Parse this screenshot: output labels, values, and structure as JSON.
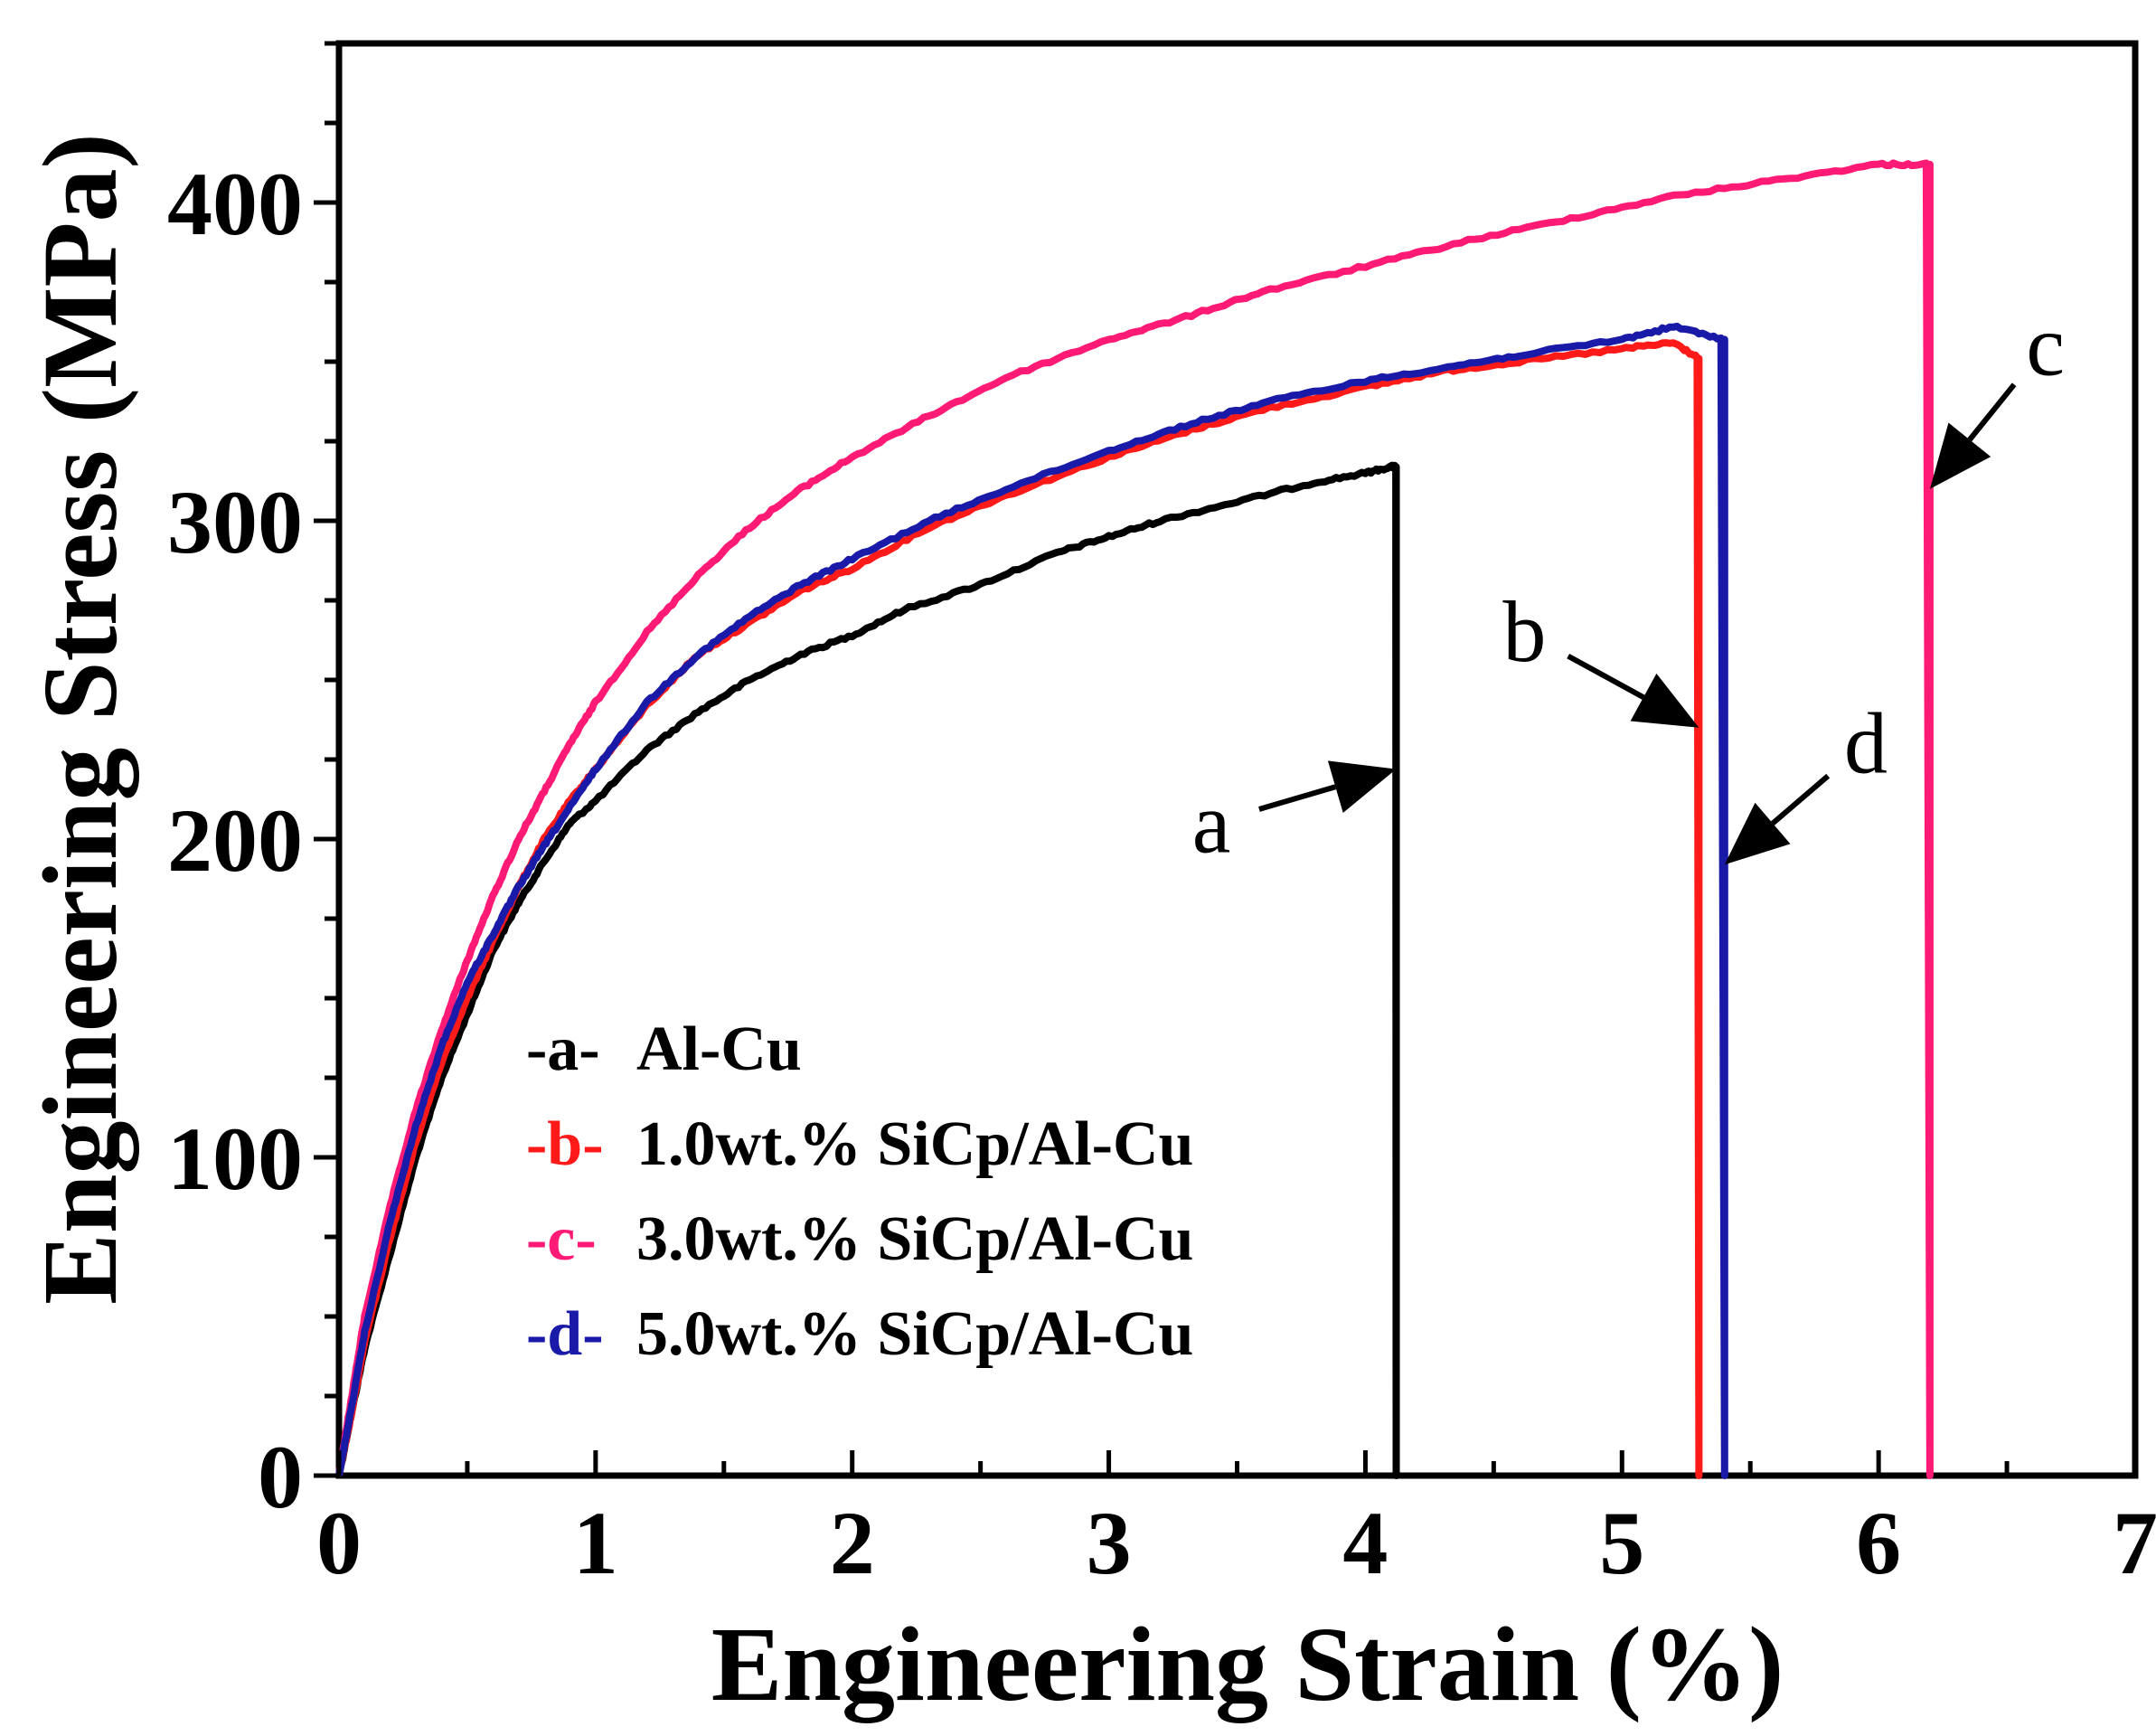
{
  "chart_data": {
    "type": "line",
    "xlabel": "Engineering Strain (%)",
    "ylabel": "Engineering  Stress (MPa)",
    "xlim": [
      0,
      7
    ],
    "ylim": [
      0,
      450
    ],
    "x_ticks": [
      0,
      1,
      2,
      3,
      4,
      5,
      6,
      7
    ],
    "x_tick_labels": [
      "0",
      "1",
      "2",
      "3",
      "4",
      "5",
      "6",
      "7"
    ],
    "y_ticks": [
      0,
      100,
      200,
      300,
      400
    ],
    "y_tick_labels": [
      "0",
      "100",
      "200",
      "300",
      "400"
    ],
    "legend_position": "lower-left",
    "series": [
      {
        "id": "a",
        "marker": "-a-",
        "name": "Al-Cu",
        "color": "#000000",
        "points": [
          [
            0,
            0
          ],
          [
            0.05,
            20
          ],
          [
            0.1,
            40
          ],
          [
            0.2,
            70
          ],
          [
            0.3,
            100
          ],
          [
            0.4,
            125
          ],
          [
            0.5,
            145
          ],
          [
            0.6,
            165
          ],
          [
            0.7,
            180
          ],
          [
            0.8,
            193
          ],
          [
            0.9,
            205
          ],
          [
            1.0,
            212
          ],
          [
            1.2,
            228
          ],
          [
            1.4,
            240
          ],
          [
            1.6,
            250
          ],
          [
            1.8,
            258
          ],
          [
            2.0,
            264
          ],
          [
            2.2,
            272
          ],
          [
            2.5,
            280
          ],
          [
            2.8,
            290
          ],
          [
            3.0,
            295
          ],
          [
            3.2,
            300
          ],
          [
            3.5,
            306
          ],
          [
            3.8,
            312
          ],
          [
            4.0,
            315
          ],
          [
            4.1,
            317
          ],
          [
            4.12,
            317
          ],
          [
            4.12,
            0
          ]
        ],
        "fracture_strain": 4.12
      },
      {
        "id": "b",
        "marker": "-b-",
        "name": "1.0wt.% SiCp/Al-Cu",
        "color": "#ff1a1a",
        "points": [
          [
            0,
            0
          ],
          [
            0.05,
            20
          ],
          [
            0.1,
            42
          ],
          [
            0.2,
            75
          ],
          [
            0.3,
            105
          ],
          [
            0.4,
            130
          ],
          [
            0.5,
            150
          ],
          [
            0.6,
            168
          ],
          [
            0.7,
            185
          ],
          [
            0.8,
            200
          ],
          [
            0.9,
            212
          ],
          [
            1.0,
            222
          ],
          [
            1.2,
            242
          ],
          [
            1.4,
            258
          ],
          [
            1.6,
            268
          ],
          [
            1.8,
            278
          ],
          [
            2.0,
            285
          ],
          [
            2.3,
            298
          ],
          [
            2.6,
            308
          ],
          [
            3.0,
            320
          ],
          [
            3.3,
            328
          ],
          [
            3.6,
            335
          ],
          [
            4.0,
            342
          ],
          [
            4.3,
            347
          ],
          [
            4.6,
            350
          ],
          [
            5.0,
            354
          ],
          [
            5.2,
            356
          ],
          [
            5.3,
            351
          ],
          [
            5.3,
            0
          ]
        ],
        "fracture_strain": 5.3
      },
      {
        "id": "c",
        "marker": "-c-",
        "name": "3.0wt.% SiCp/Al-Cu",
        "color": "#ff1a75",
        "points": [
          [
            0,
            0
          ],
          [
            0.05,
            25
          ],
          [
            0.1,
            50
          ],
          [
            0.2,
            85
          ],
          [
            0.3,
            115
          ],
          [
            0.4,
            140
          ],
          [
            0.5,
            162
          ],
          [
            0.6,
            182
          ],
          [
            0.7,
            200
          ],
          [
            0.8,
            215
          ],
          [
            0.9,
            230
          ],
          [
            1.0,
            243
          ],
          [
            1.2,
            265
          ],
          [
            1.4,
            283
          ],
          [
            1.6,
            298
          ],
          [
            1.8,
            310
          ],
          [
            2.0,
            320
          ],
          [
            2.3,
            333
          ],
          [
            2.6,
            345
          ],
          [
            3.0,
            357
          ],
          [
            3.3,
            364
          ],
          [
            3.6,
            372
          ],
          [
            4.0,
            380
          ],
          [
            4.4,
            388
          ],
          [
            4.8,
            395
          ],
          [
            5.2,
            402
          ],
          [
            5.6,
            407
          ],
          [
            6.0,
            412
          ],
          [
            6.2,
            412
          ],
          [
            6.2,
            0
          ]
        ],
        "fracture_strain": 6.2
      },
      {
        "id": "d",
        "marker": "-d-",
        "name": "5.0wt.% SiCp/Al-Cu",
        "color": "#1a1aa8",
        "points": [
          [
            0,
            0
          ],
          [
            0.05,
            22
          ],
          [
            0.1,
            45
          ],
          [
            0.2,
            80
          ],
          [
            0.3,
            110
          ],
          [
            0.4,
            135
          ],
          [
            0.5,
            155
          ],
          [
            0.6,
            170
          ],
          [
            0.7,
            185
          ],
          [
            0.8,
            198
          ],
          [
            0.9,
            210
          ],
          [
            1.0,
            222
          ],
          [
            1.2,
            243
          ],
          [
            1.4,
            258
          ],
          [
            1.6,
            270
          ],
          [
            1.8,
            280
          ],
          [
            2.0,
            288
          ],
          [
            2.3,
            300
          ],
          [
            2.6,
            310
          ],
          [
            3.0,
            322
          ],
          [
            3.3,
            330
          ],
          [
            3.6,
            337
          ],
          [
            4.0,
            344
          ],
          [
            4.3,
            348
          ],
          [
            4.6,
            352
          ],
          [
            5.0,
            357
          ],
          [
            5.2,
            361
          ],
          [
            5.4,
            357
          ],
          [
            5.4,
            0
          ]
        ],
        "fracture_strain": 5.4
      }
    ],
    "annotations": [
      {
        "label": "a",
        "arrow_target": [
          4.12,
          222
        ],
        "text_at": [
          3.4,
          205
        ]
      },
      {
        "label": "b",
        "arrow_target": [
          5.3,
          235
        ],
        "text_at": [
          4.62,
          265
        ]
      },
      {
        "label": "c",
        "arrow_target": [
          6.2,
          310
        ],
        "text_at": [
          6.65,
          355
        ]
      },
      {
        "label": "d",
        "arrow_target": [
          5.4,
          192
        ],
        "text_at": [
          5.95,
          230
        ]
      }
    ]
  }
}
